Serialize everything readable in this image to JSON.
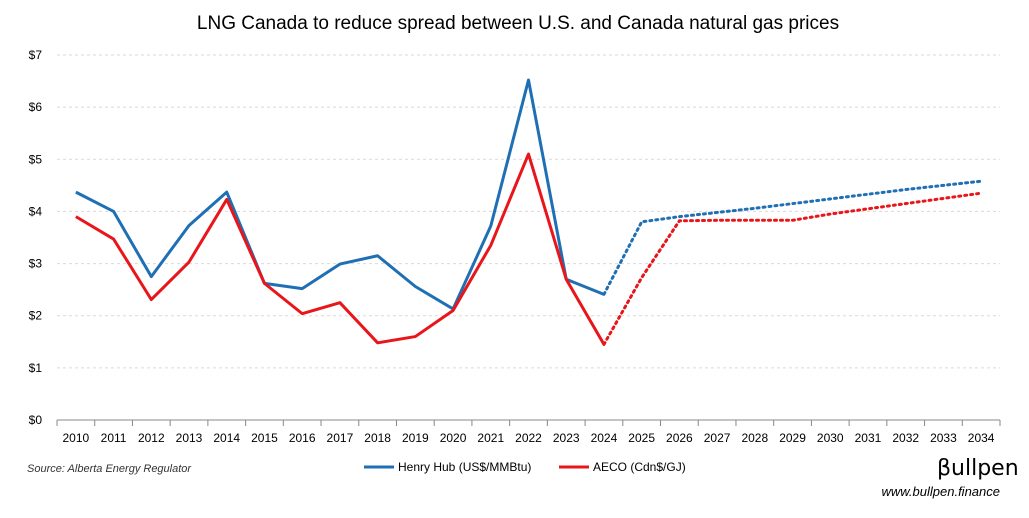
{
  "chart_data": {
    "type": "line",
    "title": "LNG Canada to reduce spread between U.S. and Canada natural gas prices",
    "x": [
      "2010",
      "2011",
      "2012",
      "2013",
      "2014",
      "2015",
      "2016",
      "2017",
      "2018",
      "2019",
      "2020",
      "2021",
      "2022",
      "2023",
      "2024",
      "2025",
      "2026",
      "2027",
      "2028",
      "2029",
      "2030",
      "2031",
      "2032",
      "2033",
      "2034"
    ],
    "ylim": [
      0,
      7
    ],
    "yticks": [
      "$0",
      "$1",
      "$2",
      "$3",
      "$4",
      "$5",
      "$6",
      "$7"
    ],
    "grid": "horizontal dashed",
    "legend": "bottom-center",
    "series": [
      {
        "name": "Henry Hub (US$/MMBtu)",
        "color": "#1f6fb5",
        "values": [
          4.37,
          4.0,
          2.75,
          3.73,
          4.37,
          2.62,
          2.52,
          2.99,
          3.15,
          2.56,
          2.13,
          3.72,
          6.52,
          2.7,
          2.41,
          3.8,
          3.9,
          3.98,
          4.06,
          4.15,
          4.24,
          4.33,
          4.42,
          4.5,
          4.58
        ],
        "projected_from": "2024"
      },
      {
        "name": "AECO (Cdn$/GJ)",
        "color": "#e8161a",
        "values": [
          3.9,
          3.47,
          2.31,
          3.03,
          4.23,
          2.62,
          2.04,
          2.25,
          1.48,
          1.6,
          2.1,
          3.35,
          5.1,
          2.7,
          1.45,
          2.73,
          3.82,
          3.83,
          3.83,
          3.83,
          3.95,
          4.05,
          4.15,
          4.25,
          4.35
        ],
        "projected_from": "2024"
      }
    ]
  },
  "footer": {
    "source": "Source: Alberta Energy Regulator",
    "brand": "βullpen",
    "url": "www.bullpen.finance"
  }
}
